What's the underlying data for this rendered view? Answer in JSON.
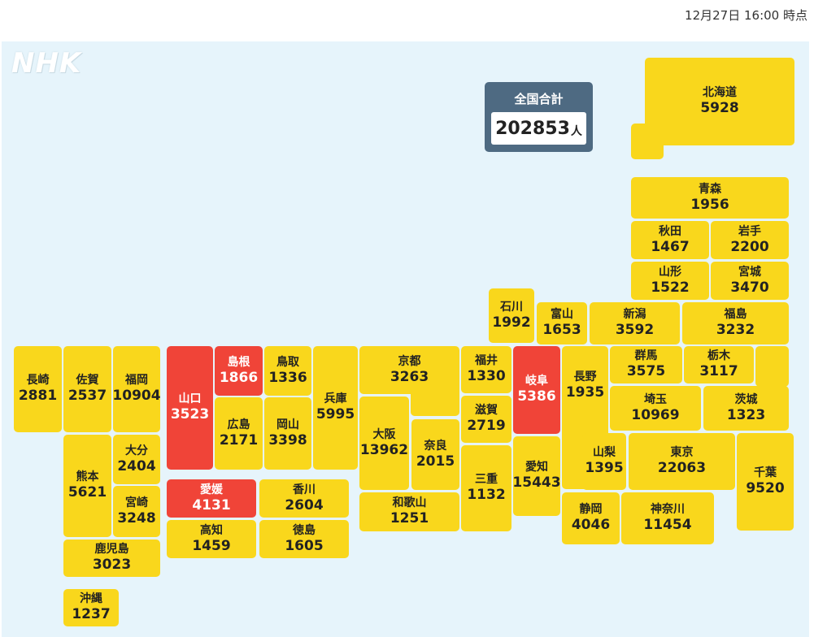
{
  "timestamp": "12月27日 16:00 時点",
  "logo": "NHK",
  "total": {
    "label": "全国合計",
    "value": "202853",
    "unit": "人"
  },
  "prefectures": {
    "hokkaido": {
      "name": "北海道",
      "count": "5928"
    },
    "aomori": {
      "name": "青森",
      "count": "1956"
    },
    "akita": {
      "name": "秋田",
      "count": "1467"
    },
    "iwate": {
      "name": "岩手",
      "count": "2200"
    },
    "yamagata": {
      "name": "山形",
      "count": "1522"
    },
    "miyagi": {
      "name": "宮城",
      "count": "3470"
    },
    "ishikawa": {
      "name": "石川",
      "count": "1992"
    },
    "toyama": {
      "name": "富山",
      "count": "1653"
    },
    "niigata": {
      "name": "新潟",
      "count": "3592"
    },
    "fukushima": {
      "name": "福島",
      "count": "3232"
    },
    "nagasaki": {
      "name": "長崎",
      "count": "2881"
    },
    "saga": {
      "name": "佐賀",
      "count": "2537"
    },
    "fukuoka": {
      "name": "福岡",
      "count": "10904"
    },
    "yamaguchi": {
      "name": "山口",
      "count": "3523"
    },
    "shimane": {
      "name": "島根",
      "count": "1866"
    },
    "tottori": {
      "name": "鳥取",
      "count": "1336"
    },
    "hyogo": {
      "name": "兵庫",
      "count": "5995"
    },
    "kyoto": {
      "name": "京都",
      "count": "3263"
    },
    "fukui": {
      "name": "福井",
      "count": "1330"
    },
    "gifu": {
      "name": "岐阜",
      "count": "5386"
    },
    "nagano": {
      "name": "長野",
      "count": "1935"
    },
    "gunma": {
      "name": "群馬",
      "count": "3575"
    },
    "tochigi": {
      "name": "栃木",
      "count": "3117"
    },
    "saitama": {
      "name": "埼玉",
      "count": "10969"
    },
    "ibaraki": {
      "name": "茨城",
      "count": "1323"
    },
    "hiroshima": {
      "name": "広島",
      "count": "2171"
    },
    "okayama": {
      "name": "岡山",
      "count": "3398"
    },
    "osaka": {
      "name": "大阪",
      "count": "13962"
    },
    "nara": {
      "name": "奈良",
      "count": "2015"
    },
    "shiga": {
      "name": "滋賀",
      "count": "2719"
    },
    "kumamoto": {
      "name": "熊本",
      "count": "5621"
    },
    "oita": {
      "name": "大分",
      "count": "2404"
    },
    "miyazaki": {
      "name": "宮崎",
      "count": "3248"
    },
    "ehime": {
      "name": "愛媛",
      "count": "4131"
    },
    "kagawa": {
      "name": "香川",
      "count": "2604"
    },
    "kochi": {
      "name": "高知",
      "count": "1459"
    },
    "tokushima": {
      "name": "徳島",
      "count": "1605"
    },
    "wakayama": {
      "name": "和歌山",
      "count": "1251"
    },
    "mie": {
      "name": "三重",
      "count": "1132"
    },
    "aichi": {
      "name": "愛知",
      "count": "15443"
    },
    "yamanashi": {
      "name": "山梨",
      "count": "1395"
    },
    "tokyo": {
      "name": "東京",
      "count": "22063"
    },
    "chiba": {
      "name": "千葉",
      "count": "9520"
    },
    "shizuoka": {
      "name": "静岡",
      "count": "4046"
    },
    "kanagawa": {
      "name": "神奈川",
      "count": "11454"
    },
    "kagoshima": {
      "name": "鹿児島",
      "count": "3023"
    },
    "okinawa": {
      "name": "沖縄",
      "count": "1237"
    }
  },
  "colors": {
    "normal": "#f9d71c",
    "alert": "#f04438",
    "background": "#e6f4fb",
    "total_box": "#4e6a82"
  }
}
